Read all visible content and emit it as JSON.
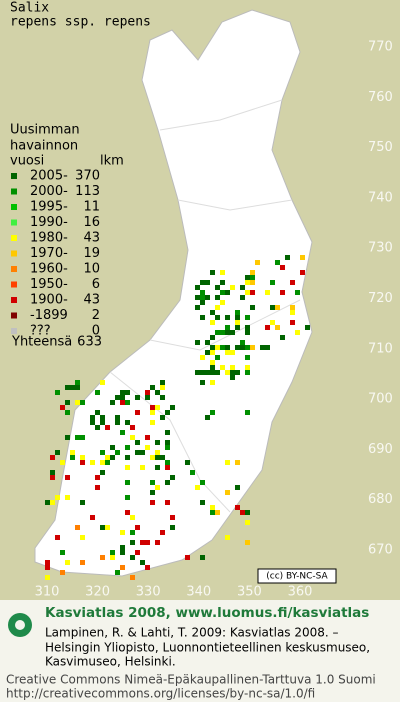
{
  "header": {
    "genus": "Salix",
    "taxon": "repens ssp. repens"
  },
  "legend": {
    "heading": [
      "Uusimman",
      "havainnon"
    ],
    "col_period": "vuosi",
    "col_count": "lkm",
    "rows": [
      {
        "period": "2005-",
        "count": 370,
        "color": "#006400"
      },
      {
        "period": "2000-",
        "count": 113,
        "color": "#009000"
      },
      {
        "period": "1995-",
        "count": 11,
        "color": "#00c000"
      },
      {
        "period": "1990-",
        "count": 16,
        "color": "#40f040"
      },
      {
        "period": "1980-",
        "count": 43,
        "color": "#ffff00"
      },
      {
        "period": "1970-",
        "count": 19,
        "color": "#ffc800"
      },
      {
        "period": "1960-",
        "count": 10,
        "color": "#ff8000"
      },
      {
        "period": "1950-",
        "count": 6,
        "color": "#ff4000"
      },
      {
        "period": "1900-",
        "count": 43,
        "color": "#d00000"
      },
      {
        "period": "-1899",
        "count": 2,
        "color": "#800000"
      },
      {
        "period": "???",
        "count": 0,
        "color": "#c0c0c0"
      }
    ],
    "total_label": "Yhteensä",
    "total": 633
  },
  "map": {
    "y_labels": [
      770,
      760,
      750,
      740,
      730,
      720,
      710,
      700,
      690,
      680,
      670
    ],
    "x_labels": [
      310,
      320,
      330,
      340,
      350,
      360
    ]
  },
  "badge": "(cc) BY-NC-SA",
  "footer": {
    "site": "Kasviatlas 2008, www.luomus.fi/kasviatlas",
    "citation": [
      "Lampinen, R. & Lahti, T. 2009: Kasviatlas 2008. –",
      "Helsingin Yliopisto, Luonnontieteellinen keskusmuseo,",
      "Kasvimuseo, Helsinki."
    ],
    "license": [
      "Creative Commons Nimeä-Epäkaupallinen-Tarttuva 1.0 Suomi",
      "http://creativecommons.org/licenses/by-nc-sa/1.0/fi"
    ]
  }
}
